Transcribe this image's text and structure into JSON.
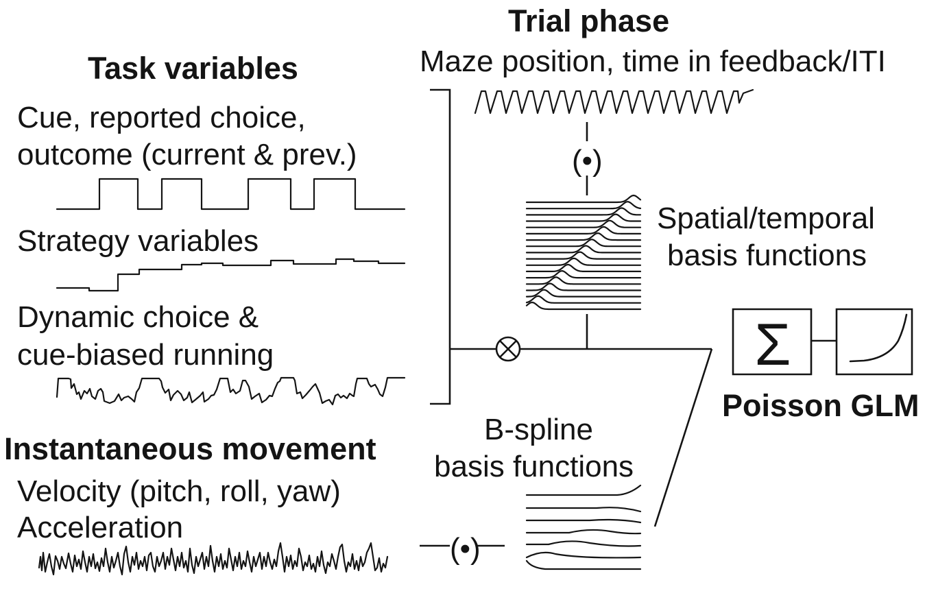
{
  "task_variables": {
    "heading": "Task variables",
    "cue_line1": "Cue, reported choice,",
    "cue_line2": "outcome (current & prev.)",
    "strategy": "Strategy variables",
    "dynamic_line1": "Dynamic choice &",
    "dynamic_line2": "cue-biased running"
  },
  "instantaneous_movement": {
    "heading": "Instantaneous movement",
    "velocity": "Velocity (pitch, roll, yaw)",
    "acceleration": "Acceleration"
  },
  "trial_phase": {
    "heading": "Trial phase",
    "subtitle": "Maze position, time in feedback/ITI"
  },
  "operators": {
    "dot_top": "(•)",
    "dot_bottom": "(•)",
    "sum_symbol": "Σ"
  },
  "spatial_basis": {
    "line1": "Spatial/temporal",
    "line2": "basis functions"
  },
  "bspline_basis": {
    "line1": "B-spline",
    "line2": "basis functions"
  },
  "glm": {
    "label": "Poisson GLM"
  }
}
